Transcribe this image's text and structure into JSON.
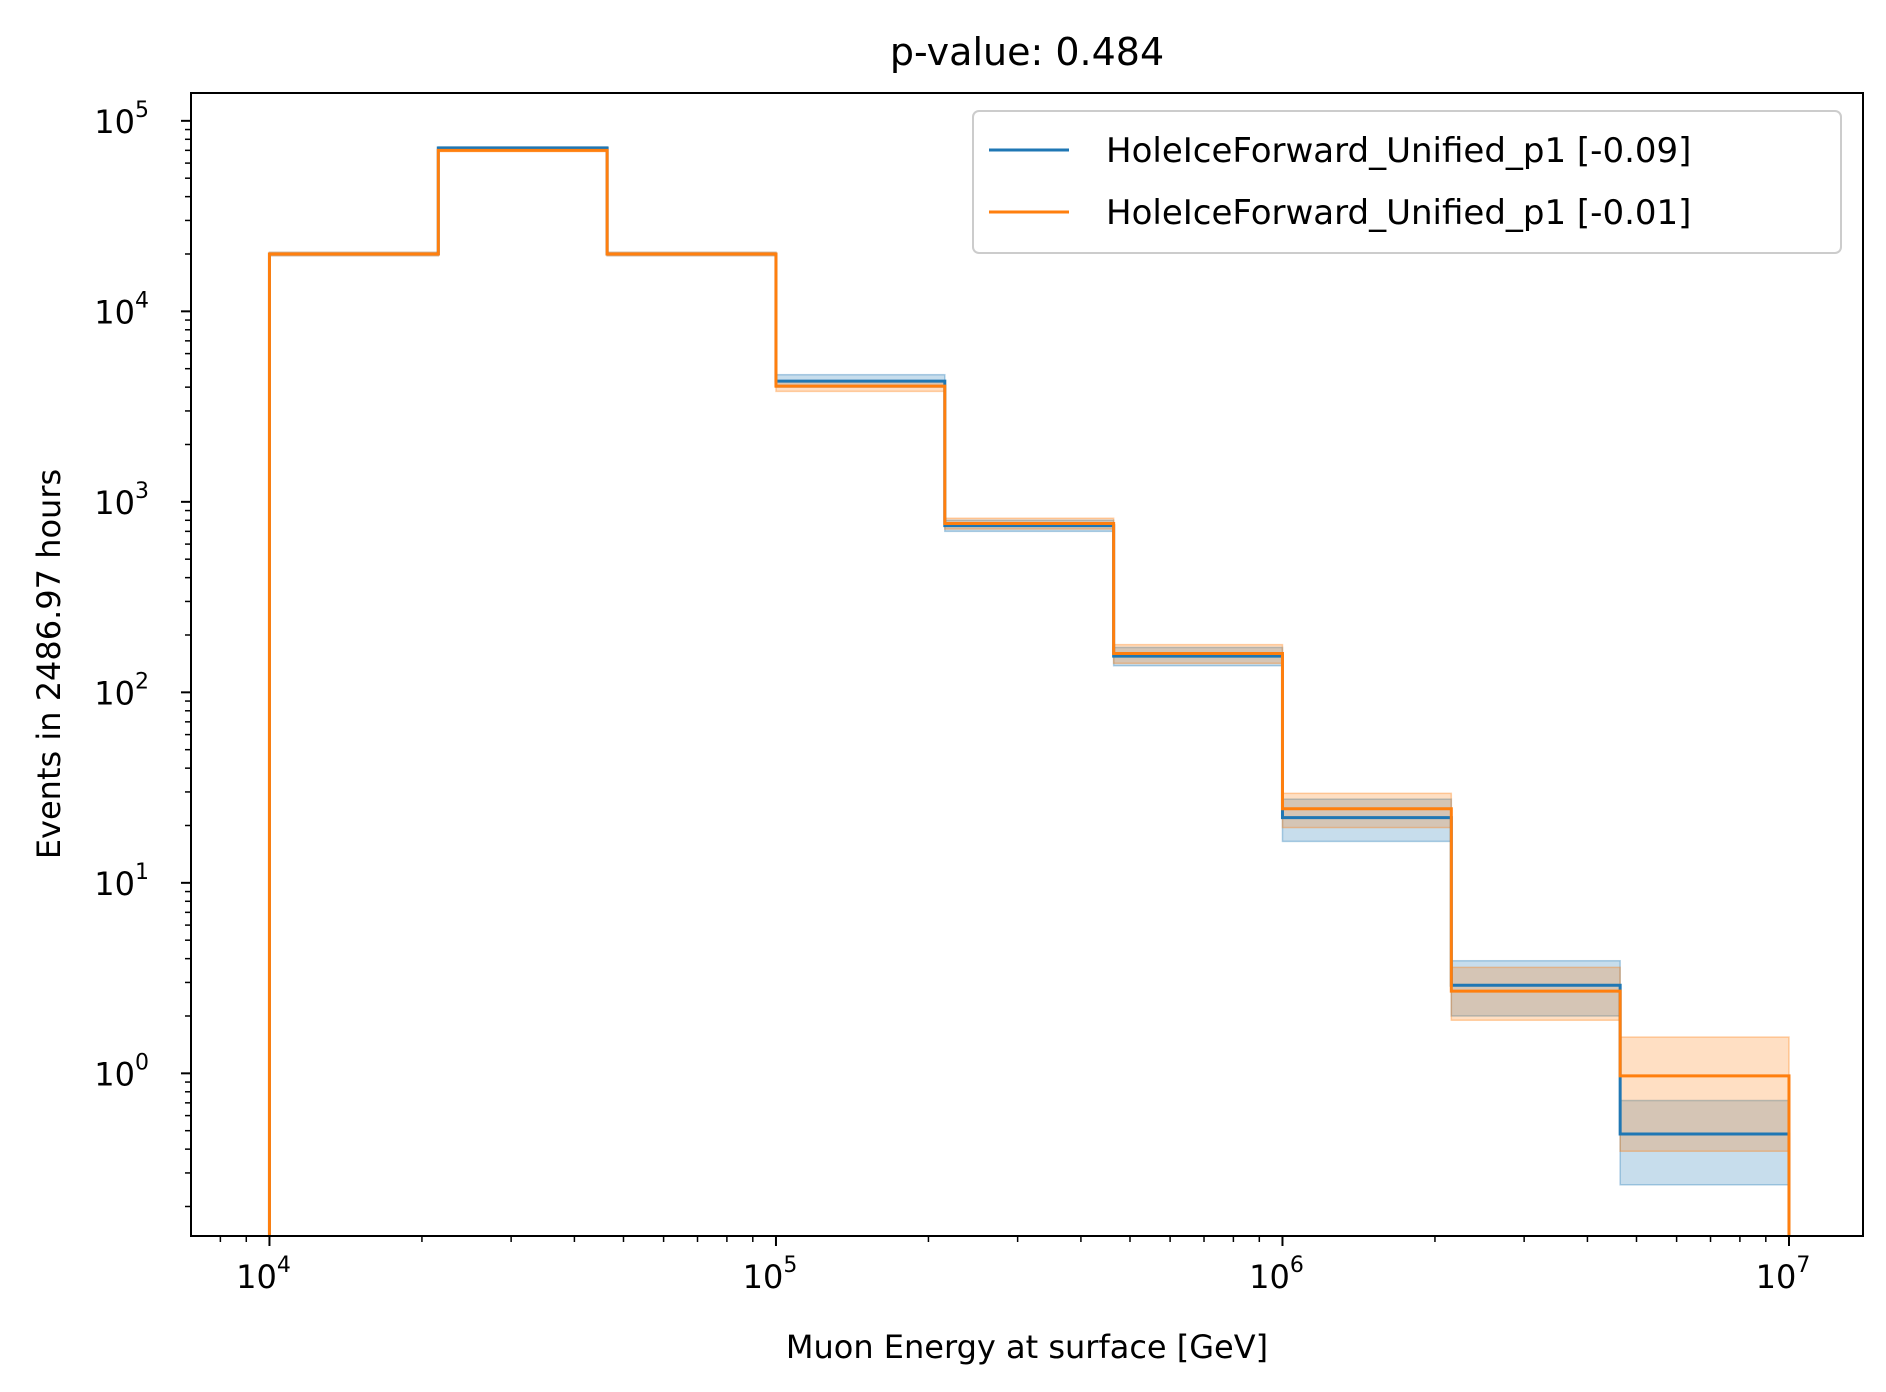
{
  "chart_data": {
    "type": "line",
    "title": "p-value: 0.484",
    "xlabel": "Muon Energy at surface [GeV]",
    "ylabel": "Events in 2486.97 hours",
    "xscale": "log",
    "yscale": "log",
    "xlim": [
      7000,
      14000000
    ],
    "ylim": [
      0.14,
      140000
    ],
    "legend_position": "top-right",
    "grid": false,
    "x_ticks": [
      {
        "value": 10000,
        "base": "10",
        "exp": "4"
      },
      {
        "value": 100000,
        "base": "10",
        "exp": "5"
      },
      {
        "value": 1000000,
        "base": "10",
        "exp": "6"
      },
      {
        "value": 10000000,
        "base": "10",
        "exp": "7"
      }
    ],
    "y_ticks": [
      {
        "value": 1,
        "base": "10",
        "exp": "0"
      },
      {
        "value": 10,
        "base": "10",
        "exp": "1"
      },
      {
        "value": 100,
        "base": "10",
        "exp": "2"
      },
      {
        "value": 1000,
        "base": "10",
        "exp": "3"
      },
      {
        "value": 10000,
        "base": "10",
        "exp": "4"
      },
      {
        "value": 100000,
        "base": "10",
        "exp": "5"
      }
    ],
    "bin_edges": [
      10000,
      21544,
      46416,
      100000,
      215443,
      464159,
      1000000,
      2154435,
      4641589,
      10000000
    ],
    "series": [
      {
        "name": "HoleIceForward_Unified_p1 [-0.09]",
        "color": "#1f77b4",
        "values": [
          20000,
          72000,
          20000,
          4300,
          750,
          155,
          22,
          2.9,
          0.48
        ],
        "lower": [
          19600,
          71000,
          19600,
          4000,
          700,
          138,
          16.5,
          2.0,
          0.26
        ],
        "upper": [
          20400,
          73000,
          20400,
          4650,
          800,
          172,
          27.5,
          3.9,
          0.72
        ]
      },
      {
        "name": "HoleIceForward_Unified_p1 [-0.01]",
        "color": "#ff7f0e",
        "values": [
          20000,
          70000,
          20000,
          4050,
          770,
          160,
          24.5,
          2.7,
          0.97
        ],
        "lower": [
          19600,
          69000,
          19600,
          3800,
          720,
          142,
          19.5,
          1.9,
          0.39
        ],
        "upper": [
          20400,
          71000,
          20400,
          4300,
          820,
          178,
          29.5,
          3.6,
          1.55
        ]
      }
    ]
  }
}
